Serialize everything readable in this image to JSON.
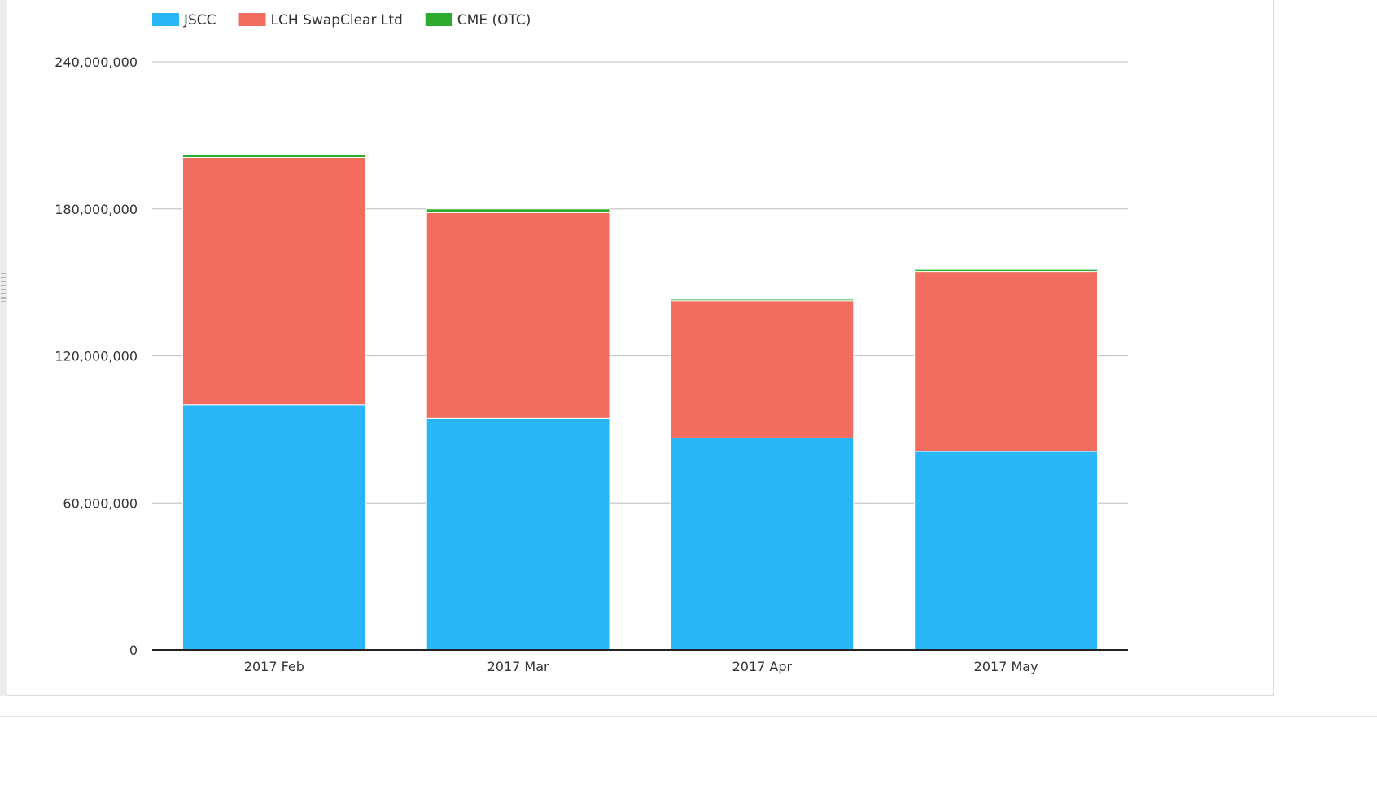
{
  "chart_data": {
    "type": "bar",
    "stacked": true,
    "categories": [
      "2017 Feb",
      "2017 Mar",
      "2017 Apr",
      "2017 May"
    ],
    "series": [
      {
        "name": "JSCC",
        "color": "#29b6f6",
        "values": [
          100000000,
          94500000,
          86500000,
          81000000
        ]
      },
      {
        "name": "LCH SwapClear Ltd",
        "color": "#f26c60",
        "values": [
          101000000,
          84000000,
          56000000,
          73500000
        ]
      },
      {
        "name": "CME (OTC)",
        "color": "#2eaa2e",
        "values": [
          1000000,
          1500000,
          600000,
          800000
        ]
      }
    ],
    "ylim": [
      0,
      240000000
    ],
    "yticks": [
      0,
      60000000,
      120000000,
      180000000,
      240000000
    ],
    "ytick_labels": [
      "0",
      "60,000,000",
      "120,000,000",
      "180,000,000",
      "240,000,000"
    ],
    "grid": true,
    "legend_position": "top-left"
  }
}
